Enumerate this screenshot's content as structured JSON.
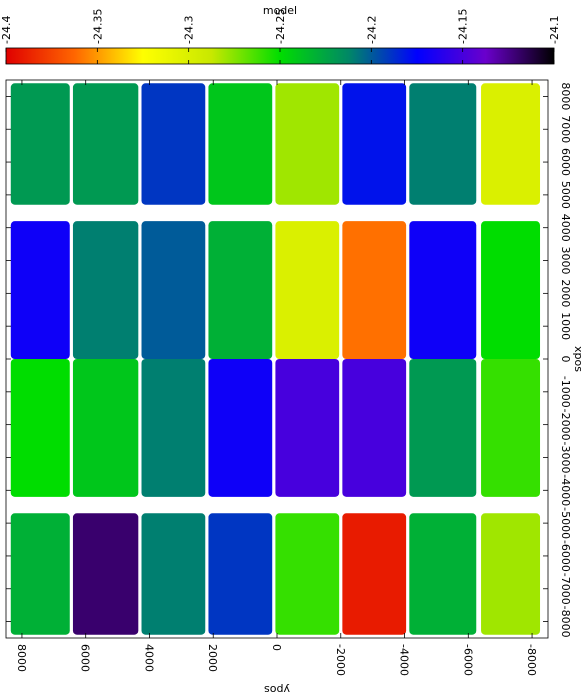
{
  "chart_data": {
    "type": "heatmap",
    "title": "",
    "colorbar": {
      "label": "model",
      "range": [
        -24.4,
        -24.1
      ],
      "ticks": [
        -24.4,
        -24.35,
        -24.3,
        -24.25,
        -24.2,
        -24.15,
        -24.1
      ],
      "tick_labels": [
        "-24.4",
        "-24.35",
        "-24.3",
        "-24.25",
        "-24.2",
        "-24.15",
        "-24.1"
      ],
      "colors": [
        "#e00000",
        "#ff6600",
        "#ffff00",
        "#c8e800",
        "#00dd00",
        "#008866",
        "#0000ff",
        "#6a00cc",
        "#000000"
      ]
    },
    "y_axis": {
      "label": "ypos",
      "range": [
        -8500,
        8500
      ],
      "ticks": [
        -8000,
        -6000,
        -4000,
        -2000,
        0,
        2000,
        4000,
        6000,
        8000
      ],
      "tick_labels": [
        "-8000",
        "-6000",
        "-4000",
        "-2000",
        "0",
        "2000",
        "4000",
        "6000",
        "8000"
      ]
    },
    "x_axis": {
      "label": "xpos",
      "range": [
        -8500,
        8500
      ],
      "ticks": [
        -8000,
        -7000,
        -6000,
        -5000,
        -4000,
        -3000,
        -2000,
        -1000,
        0,
        1000,
        2000,
        3000,
        4000,
        5000,
        6000,
        7000,
        8000
      ],
      "tick_labels": [
        "-8000",
        "-7000",
        "-6000",
        "-5000",
        "-4000",
        "-3000",
        "-2000",
        "-1000",
        "0",
        "1000",
        "2000",
        "3000",
        "4000",
        "5000",
        "6000",
        "7000",
        "8000"
      ]
    },
    "rows_y": [
      [
        -8250,
        -6400
      ],
      [
        -6250,
        -4150
      ],
      [
        -4050,
        -2050
      ],
      [
        -1950,
        50
      ],
      [
        150,
        2150
      ],
      [
        2250,
        4250
      ],
      [
        4350,
        6400
      ],
      [
        6500,
        8350
      ]
    ],
    "columns_x": [
      {
        "x": [
          4700,
          8400
        ],
        "split_at": null
      },
      {
        "x": [
          0,
          4200
        ],
        "split_at": 0
      },
      {
        "x": [
          -4200,
          0
        ],
        "split_at": -4200
      },
      {
        "x": [
          -8400,
          -4700
        ],
        "split_at": null
      }
    ],
    "cells": [
      [
        -24.3,
        -24.25,
        -24.26,
        -24.28
      ],
      [
        -24.21,
        -24.17,
        -24.22,
        -24.23
      ],
      [
        -24.18,
        -24.36,
        -24.15,
        -24.39
      ],
      [
        -24.28,
        -24.3,
        -24.15,
        -24.26
      ],
      [
        -24.24,
        -24.23,
        -24.17,
        -24.19
      ],
      [
        -24.19,
        -24.2,
        -24.21,
        -24.21
      ],
      [
        -24.22,
        -24.21,
        -24.24,
        -24.12
      ],
      [
        -24.22,
        -24.17,
        -24.25,
        -24.23
      ]
    ]
  }
}
